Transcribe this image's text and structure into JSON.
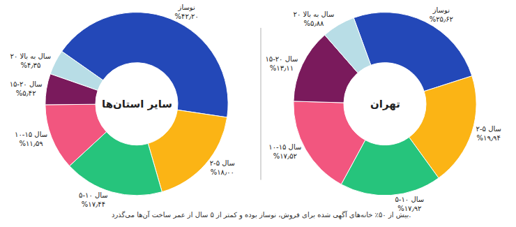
{
  "chart_data": [
    {
      "type": "pie",
      "title": "سایر استان‌ها",
      "categories": [
        "نوساز",
        "۲-۵ سال",
        "۵-۱۰ سال",
        "۱۰-۱۵ سال",
        "۱۵-۲۰ سال",
        "۲۰ سال به بالا"
      ],
      "values": [
        42.2,
        18.0,
        17.44,
        11.59,
        5.42,
        4.35
      ],
      "value_labels": [
        "%۴۲٫۲۰",
        "%۱۸٫۰۰",
        "%۱۷٫۴۴",
        "%۱۱٫۵۹",
        "%۵٫۴۲",
        "%۴٫۳۵"
      ],
      "colors": [
        "#2348b8",
        "#fbb415",
        "#26c47c",
        "#f2567f",
        "#7a1a5c",
        "#b8dde6"
      ],
      "data_labels": true
    },
    {
      "type": "pie",
      "title": "تهران",
      "categories": [
        "نوساز",
        "۲-۵ سال",
        "۵-۱۰ سال",
        "۱۰-۱۵ سال",
        "۱۵-۲۰ سال",
        "۲۰ سال به بالا"
      ],
      "values": [
        25.62,
        19.94,
        17.92,
        17.52,
        13.11,
        5.88
      ],
      "value_labels": [
        "%۲۵٫۶۲",
        "%۱۹٫۹۴",
        "%۱۷٫۹۲",
        "%۱۷٫۵۲",
        "%۱۳٫۱۱",
        "%۵٫۸۸"
      ],
      "colors": [
        "#2348b8",
        "#fbb415",
        "#26c47c",
        "#f2567f",
        "#7a1a5c",
        "#b8dde6"
      ],
      "data_labels": true
    }
  ],
  "caption": "بیش از ۵۰٪ خانه‌های آگهی شده برای فروش، نوساز بوده و کمتر از ۵ سال از عمر ساخت آن‌ها می‌گذرد."
}
